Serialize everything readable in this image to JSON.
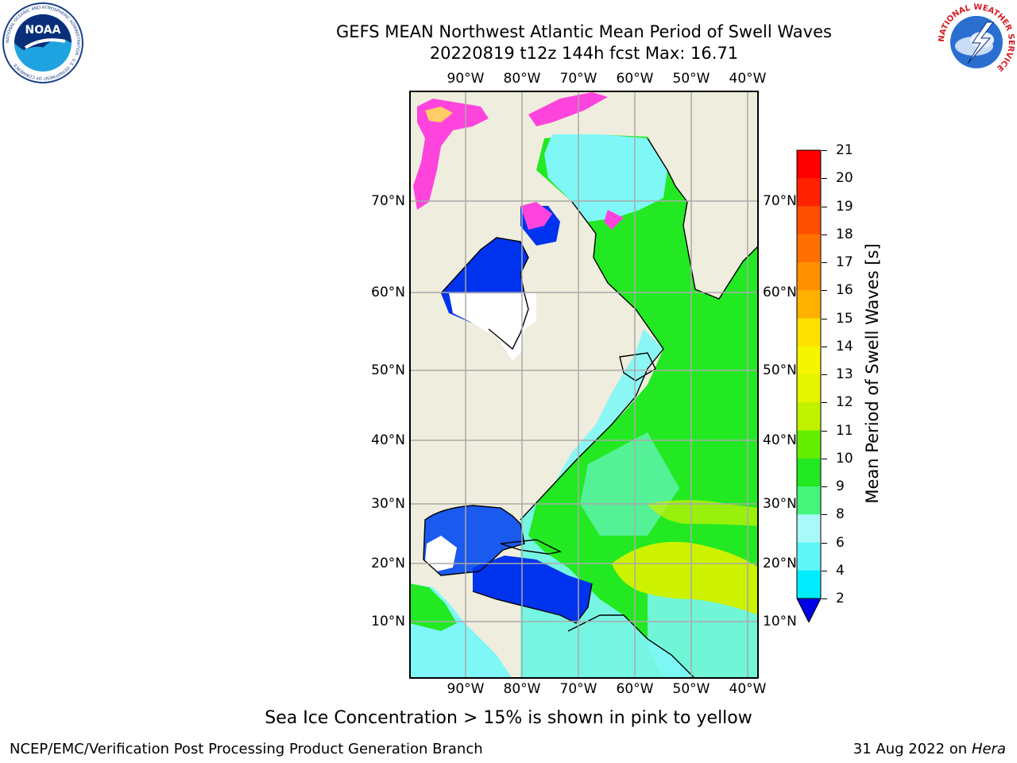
{
  "header": {
    "title": "GEFS MEAN Northwest Atlantic Mean Period of Swell Waves",
    "subtitle": "20220819 t12z 144h fcst   Max: 16.71"
  },
  "map": {
    "lon_labels": [
      "90°W",
      "80°W",
      "70°W",
      "60°W",
      "50°W",
      "40°W"
    ],
    "lat_labels": [
      "70°N",
      "60°N",
      "50°N",
      "40°N",
      "30°N",
      "20°N",
      "10°N"
    ],
    "colors": {
      "land": "#efeddd",
      "ocean_low": "#0033ee",
      "ocean_mid": "#7ff7f7",
      "ocean_high": "#22e922",
      "peak": "#ccf200",
      "sea_ice": "#ff44dd"
    }
  },
  "colorbar": {
    "label": "Mean Period of Swell Waves [s]",
    "ticks": [
      "21",
      "20",
      "19",
      "18",
      "17",
      "16",
      "15",
      "14",
      "13",
      "12",
      "11",
      "10",
      "9",
      "8",
      "6",
      "4",
      "2"
    ],
    "colors": [
      "#ff0000",
      "#ff2200",
      "#ff5000",
      "#ff7000",
      "#ff9000",
      "#ffb000",
      "#ffe000",
      "#f5f500",
      "#e4f500",
      "#c0f200",
      "#66ee00",
      "#22e922",
      "#44f57a",
      "#aaf9f9",
      "#5ef6f6",
      "#00eeff",
      "#0077ff",
      "#0000e6"
    ]
  },
  "footer": {
    "note": "Sea Ice Concentration > 15% is shown in pink to yellow",
    "credit": "NCEP/EMC/Verification Post Processing Product Generation Branch",
    "date": "31 Aug 2022 on",
    "host": "Hera"
  },
  "logos": {
    "noaa_text": "NOAA",
    "noaa_ring": "NATIONAL OCEANIC AND ATMOSPHERIC ADMINISTRATION · U.S. DEPARTMENT OF COMMERCE",
    "nws_ring": "NATIONAL WEATHER SERVICE"
  }
}
